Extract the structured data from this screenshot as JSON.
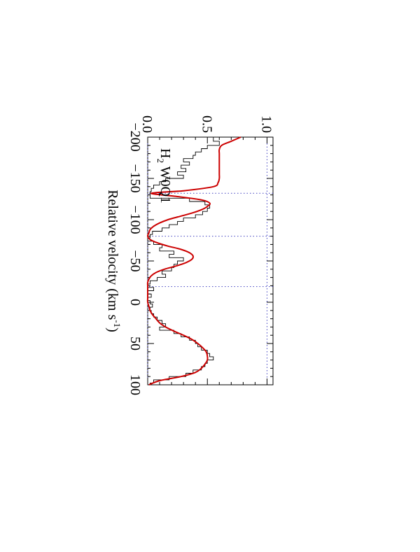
{
  "chart_data": {
    "type": "line",
    "orientation": "rotated-90-clockwise",
    "xlabel": "Relative velocity (km s",
    "xlabel_sup": "-1",
    "xlabel_tail": ")",
    "ylabel": "",
    "xlim": [
      -200,
      100
    ],
    "ylim": [
      0,
      1.05
    ],
    "x_ticks": [
      -200,
      -150,
      -100,
      -50,
      0,
      50,
      100
    ],
    "x_tick_labels": [
      "−200",
      "−150",
      "−100",
      "−50",
      "0",
      "50",
      "100"
    ],
    "y_ticks": [
      0.0,
      0.5,
      1.0
    ],
    "y_tick_labels": [
      "0.0",
      "0.5",
      "1.0"
    ],
    "annotation": {
      "main": "H",
      "sub": "2",
      "rest": " W0Q1"
    },
    "reference_lines": {
      "flux_levels": [
        0.0,
        1.0
      ],
      "velocities": [
        -132,
        -80,
        -19
      ],
      "color": "#4040c0"
    },
    "series": [
      {
        "kind": "data-histogram",
        "color": "#000000",
        "x": [
          -200,
          -195,
          -190,
          -186,
          -182,
          -178,
          -174,
          -170,
          -166,
          -162,
          -158,
          -154,
          -150,
          -146,
          -142,
          -138,
          -134,
          -130,
          -126,
          -122,
          -118,
          -114,
          -110,
          -106,
          -102,
          -98,
          -94,
          -90,
          -86,
          -82,
          -78,
          -74,
          -70,
          -66,
          -62,
          -58,
          -54,
          -50,
          -46,
          -42,
          -38,
          -34,
          -30,
          -26,
          -22,
          -18,
          -14,
          -10,
          -6,
          -2,
          2,
          6,
          10,
          14,
          18,
          22,
          26,
          30,
          34,
          38,
          42,
          46,
          50,
          54,
          58,
          62,
          66,
          70,
          74,
          78,
          82,
          86,
          90,
          94,
          98
        ],
        "y": [
          0.55,
          0.6,
          0.5,
          0.45,
          0.4,
          0.38,
          0.3,
          0.35,
          0.28,
          0.32,
          0.25,
          0.3,
          0.15,
          0.1,
          0.05,
          0.03,
          0.02,
          0.02,
          0.35,
          0.48,
          0.52,
          0.5,
          0.46,
          0.4,
          0.3,
          0.25,
          0.18,
          0.12,
          0.04,
          0.02,
          0.0,
          0.05,
          0.12,
          0.1,
          0.22,
          0.18,
          0.3,
          0.25,
          0.22,
          0.2,
          0.12,
          0.15,
          0.08,
          0.02,
          0.0,
          0.05,
          0.0,
          0.03,
          0.0,
          0.02,
          0.04,
          0.02,
          0.03,
          0.05,
          0.08,
          0.12,
          0.15,
          0.1,
          0.22,
          0.28,
          0.35,
          0.4,
          0.42,
          0.45,
          0.5,
          0.52,
          0.55,
          0.5,
          0.48,
          0.45,
          0.38,
          0.32,
          0.18,
          0.05,
          0.02
        ]
      },
      {
        "kind": "model-fit",
        "color": "#cc0000",
        "x": [
          -200,
          -195,
          -190,
          -185,
          -180,
          -175,
          -170,
          -165,
          -160,
          -155,
          -150,
          -145,
          -140,
          -135,
          -132,
          -128,
          -124,
          -120,
          -116,
          -112,
          -108,
          -104,
          -100,
          -96,
          -92,
          -88,
          -84,
          -80,
          -76,
          -72,
          -68,
          -64,
          -60,
          -56,
          -52,
          -48,
          -44,
          -40,
          -36,
          -32,
          -28,
          -24,
          -20,
          -15,
          -10,
          -5,
          0,
          5,
          10,
          15,
          20,
          25,
          30,
          35,
          40,
          45,
          50,
          55,
          60,
          65,
          70,
          75,
          80,
          85,
          90,
          95,
          100
        ],
        "y": [
          0.78,
          0.7,
          0.62,
          0.6,
          0.6,
          0.6,
          0.6,
          0.6,
          0.6,
          0.6,
          0.6,
          0.59,
          0.55,
          0.3,
          0.03,
          0.25,
          0.45,
          0.52,
          0.5,
          0.45,
          0.37,
          0.27,
          0.17,
          0.1,
          0.05,
          0.02,
          0.01,
          0.0,
          0.02,
          0.08,
          0.17,
          0.28,
          0.35,
          0.38,
          0.37,
          0.32,
          0.24,
          0.14,
          0.07,
          0.03,
          0.01,
          0.0,
          0.0,
          0.0,
          0.0,
          0.0,
          0.0,
          0.01,
          0.02,
          0.04,
          0.07,
          0.1,
          0.15,
          0.22,
          0.3,
          0.37,
          0.42,
          0.46,
          0.49,
          0.5,
          0.5,
          0.48,
          0.45,
          0.4,
          0.28,
          0.1,
          0.01
        ]
      }
    ]
  }
}
